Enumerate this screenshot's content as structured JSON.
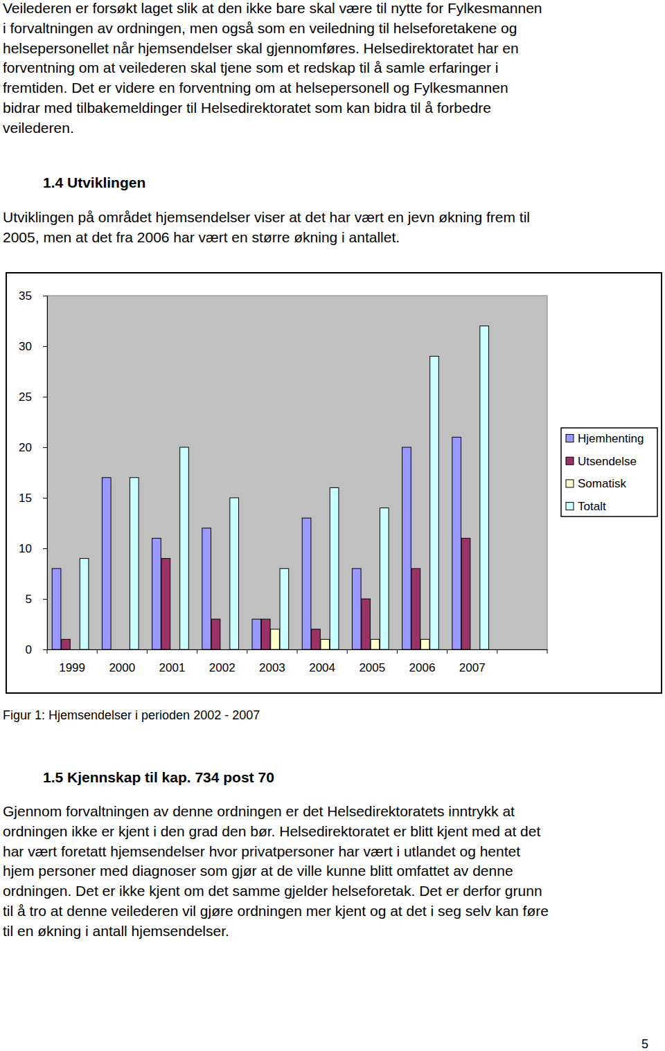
{
  "document": {
    "paragraph_top": [
      "Veilederen er forsøkt laget slik at den ikke bare skal være til nytte for Fylkesmannen",
      "i forvaltningen av ordningen, men også som en veiledning til helseforetakene og",
      "helsepersonellet når hjemsendelser skal gjennomføres. Helsedirektoratet har en",
      "forventning om at veilederen skal tjene som et redskap til å samle erfaringer i",
      "fremtiden. Det er videre en forventning om at helsepersonell og Fylkesmannen",
      "bidrar med tilbakemeldinger til Helsedirektoratet som kan bidra til å forbedre",
      "veilederen."
    ],
    "heading_1": "1.4 Utviklingen",
    "paragraph_1": [
      "Utviklingen på området hjemsendelser viser at det har vært en jevn økning frem til",
      "2005, men at det fra 2006 har vært en større økning i antallet."
    ],
    "caption": "Figur 1: Hjemsendelser i perioden 2002 - 2007",
    "heading_2": "1.5 Kjennskap til kap. 734 post 70",
    "paragraph_2": [
      "Gjennom forvaltningen av denne ordningen er det Helsedirektoratets inntrykk at",
      "ordningen ikke er kjent i den grad den bør. Helsedirektoratet er blitt kjent med at det",
      "har vært foretatt hjemsendelser hvor privatpersoner har vært i utlandet og hentet",
      "hjem personer med diagnoser som gjør at de ville kunne blitt omfattet av denne",
      "ordningen. Det er ikke kjent om det samme gjelder helseforetak. Det er derfor grunn",
      "til å tro at denne veilederen vil gjøre ordningen mer kjent og at det i seg selv kan føre",
      "til en økning i antall hjemsendelser."
    ],
    "page_number": "5"
  },
  "chart_data": {
    "type": "bar",
    "categories": [
      "1999",
      "2000",
      "2001",
      "2002",
      "2003",
      "2004",
      "2005",
      "2006",
      "2007",
      null
    ],
    "series": [
      {
        "name": "Hjemhenting",
        "color": "#9999ff",
        "values": [
          8,
          17,
          11,
          12,
          3,
          13,
          8,
          20,
          21,
          null
        ]
      },
      {
        "name": "Utsendelse",
        "color": "#993366",
        "values": [
          1,
          0,
          9,
          3,
          3,
          2,
          5,
          8,
          11,
          null
        ]
      },
      {
        "name": "Somatisk",
        "color": "#ffffcc",
        "values": [
          0,
          0,
          0,
          0,
          2,
          1,
          1,
          1,
          0,
          null
        ]
      },
      {
        "name": "Totalt",
        "color": "#ccffff",
        "values": [
          9,
          17,
          20,
          15,
          8,
          16,
          14,
          29,
          32,
          null
        ]
      }
    ],
    "ylim": [
      0,
      35
    ],
    "yticks": [
      0,
      5,
      10,
      15,
      20,
      25,
      30,
      35
    ],
    "grid": false,
    "legend": "right",
    "data_labels": false
  }
}
